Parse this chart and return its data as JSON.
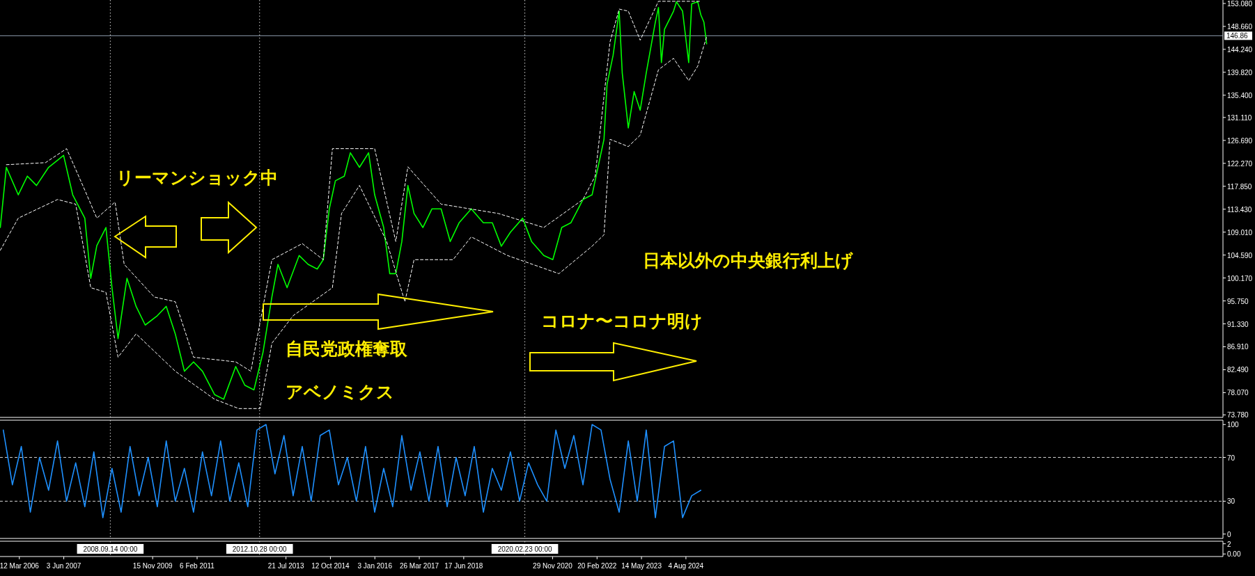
{
  "chart_data": [
    {
      "type": "line",
      "xlim": [
        "2005-08-29",
        "2039-06-01"
      ],
      "ylim": [
        73.3,
        153.75
      ],
      "tick_labels": "y",
      "yticks": [
        {
          "value": 153.08,
          "label": "153.080"
        },
        {
          "value": 148.66,
          "label": "148.660"
        },
        {
          "value": 144.24,
          "label": "144.240"
        },
        {
          "value": 139.82,
          "label": "139.820"
        },
        {
          "value": 135.4,
          "label": "135.400"
        },
        {
          "value": 131.11,
          "label": "131.110"
        },
        {
          "value": 126.69,
          "label": "126.690"
        },
        {
          "value": 122.27,
          "label": "122.270"
        },
        {
          "value": 117.85,
          "label": "117.850"
        },
        {
          "value": 113.43,
          "label": "113.430"
        },
        {
          "value": 109.01,
          "label": "109.010"
        },
        {
          "value": 104.59,
          "label": "104.590"
        },
        {
          "value": 100.17,
          "label": "100.170"
        },
        {
          "value": 95.75,
          "label": "95.750"
        },
        {
          "value": 91.33,
          "label": "91.330"
        },
        {
          "value": 86.91,
          "label": "86.910"
        },
        {
          "value": 82.49,
          "label": "82.490"
        },
        {
          "value": 78.07,
          "label": "78.070"
        },
        {
          "value": 73.78,
          "label": "73.780"
        }
      ],
      "series": [
        {
          "color": "#00ff00",
          "line_style": "solid",
          "x": [
            "2005-09",
            "2005-11",
            "2006-03",
            "2006-06",
            "2006-09",
            "2007-01",
            "2007-06",
            "2007-09",
            "2008-01",
            "2008-03",
            "2008-05",
            "2008-08",
            "2008-10",
            "2008-12",
            "2009-03",
            "2009-06",
            "2009-09",
            "2010-01",
            "2010-04",
            "2010-07",
            "2010-10",
            "2011-01",
            "2011-04",
            "2011-08",
            "2011-11",
            "2012-03",
            "2012-06",
            "2012-09",
            "2012-12",
            "2013-03",
            "2013-05",
            "2013-08",
            "2013-12",
            "2014-03",
            "2014-06",
            "2014-08",
            "2014-10",
            "2014-12",
            "2015-03",
            "2015-05",
            "2015-08",
            "2015-11",
            "2016-01",
            "2016-04",
            "2016-06",
            "2016-08",
            "2016-10",
            "2016-12",
            "2017-02",
            "2017-05",
            "2017-08",
            "2017-11",
            "2018-02",
            "2018-05",
            "2018-09",
            "2019-01",
            "2019-04",
            "2019-07",
            "2019-10",
            "2020-02",
            "2020-05",
            "2020-09",
            "2020-12",
            "2021-03",
            "2021-06",
            "2021-10",
            "2022-01",
            "2022-05",
            "2022-06",
            "2022-08",
            "2022-10",
            "2022-11",
            "2023-01",
            "2023-03",
            "2023-05",
            "2023-07",
            "2023-10",
            "2023-11",
            "2023-12",
            "2024-01",
            "2024-04",
            "2024-05",
            "2024-07",
            "2024-09",
            "2024-10",
            "2024-12",
            "2025-01",
            "2025-02",
            "2025-03"
          ],
          "values": [
            109.9,
            121.5,
            116.2,
            119.8,
            118.0,
            121.5,
            123.8,
            116.2,
            111.7,
            100.1,
            106.4,
            109.9,
            98.3,
            88.5,
            100.1,
            94.7,
            91.1,
            92.9,
            94.7,
            89.4,
            82.2,
            84.0,
            82.2,
            77.7,
            76.8,
            83.1,
            79.5,
            78.6,
            85.8,
            96.5,
            102.8,
            98.3,
            104.5,
            102.8,
            101.9,
            103.7,
            113.5,
            118.9,
            119.8,
            124.3,
            121.5,
            124.3,
            116.2,
            109.9,
            101.0,
            101.0,
            107.2,
            118.0,
            112.6,
            109.9,
            113.5,
            113.5,
            107.2,
            110.8,
            113.5,
            110.8,
            110.8,
            106.3,
            109.0,
            111.7,
            107.2,
            104.5,
            103.7,
            109.9,
            110.8,
            115.3,
            116.2,
            126.9,
            137.5,
            143.1,
            151.6,
            139.7,
            129.1,
            136.1,
            132.5,
            139.7,
            149.5,
            152.3,
            141.7,
            148.1,
            151.6,
            153.4,
            151.6,
            141.7,
            153.0,
            153.4,
            150.9,
            149.5,
            145.3
          ]
        },
        {
          "color": "#ffffff",
          "line_style": "dashed",
          "x": [
            "2005-11",
            "2006-12",
            "2007-07",
            "2008-01",
            "2008-05",
            "2008-11",
            "2009-02",
            "2009-12",
            "2010-07",
            "2011-01",
            "2012-03",
            "2012-08",
            "2013-03",
            "2014-01",
            "2014-08",
            "2014-11",
            "2016-01",
            "2016-08",
            "2016-12",
            "2017-11",
            "2019-06",
            "2020-09",
            "2021-10",
            "2022-02",
            "2022-07",
            "2022-10",
            "2023-01",
            "2023-05",
            "2023-11",
            "2024-05",
            "2025-01"
          ],
          "values": [
            122.0,
            122.4,
            125.1,
            117.1,
            111.7,
            114.8,
            102.8,
            96.5,
            95.6,
            84.9,
            84.0,
            82.2,
            103.7,
            106.8,
            103.7,
            125.1,
            125.1,
            107.2,
            121.6,
            114.4,
            112.6,
            109.9,
            115.3,
            119.8,
            145.7,
            152.0,
            151.6,
            146.0,
            153.5,
            153.5,
            153.5
          ]
        },
        {
          "color": "#ffffff",
          "line_style": "dashed",
          "x": [
            "2005-09",
            "2006-03",
            "2007-04",
            "2007-10",
            "2008-03",
            "2008-08",
            "2008-12",
            "2009-06",
            "2010-07",
            "2011-08",
            "2012-04",
            "2012-11",
            "2013-03",
            "2013-10",
            "2014-11",
            "2015-02",
            "2015-08",
            "2016-05",
            "2016-11",
            "2017-02",
            "2018-03",
            "2018-09",
            "2019-09",
            "2021-02",
            "2022-01",
            "2022-05",
            "2022-07",
            "2023-01",
            "2023-05",
            "2023-11",
            "2024-04",
            "2024-09",
            "2024-12",
            "2025-03"
          ],
          "values": [
            105.5,
            111.7,
            115.3,
            114.4,
            98.3,
            97.4,
            84.9,
            89.4,
            82.2,
            76.8,
            75.0,
            75.0,
            87.6,
            92.9,
            98.3,
            112.6,
            118.0,
            107.2,
            95.6,
            103.7,
            103.7,
            108.1,
            104.5,
            101.0,
            106.3,
            108.5,
            126.9,
            125.5,
            127.7,
            140.3,
            142.5,
            138.2,
            141.0,
            146.7
          ]
        }
      ],
      "ref_lines": [
        {
          "axis": "x",
          "value": "2008-09-14",
          "color": "#d0d0d0",
          "line_style": "dotted"
        },
        {
          "axis": "x",
          "value": "2012-10-28",
          "color": "#d0d0d0",
          "line_style": "dotted"
        },
        {
          "axis": "x",
          "value": "2020-02-23",
          "color": "#d0d0d0",
          "line_style": "dotted"
        },
        {
          "axis": "y",
          "value": 146.86,
          "label": "146.86",
          "color": "#8c9bab",
          "line_style": "solid"
        }
      ],
      "annotations": [
        "リーマンショック中",
        "自民党政権奪取",
        "アベノミクス",
        "コロナ〜コロナ明け",
        "日本以外の中央銀行利上げ"
      ]
    },
    {
      "type": "line",
      "xlim": [
        "2005-08-29",
        "2039-06-01"
      ],
      "ylim": [
        -4,
        104
      ],
      "tick_labels": "y",
      "yticks": [
        0,
        30,
        70,
        100
      ],
      "series": [
        {
          "color": "#1e90ff",
          "line_style": "solid",
          "x": [
            "2005-10",
            "2006-01",
            "2006-04",
            "2006-07",
            "2006-10",
            "2007-01",
            "2007-04",
            "2007-07",
            "2007-10",
            "2008-01",
            "2008-04",
            "2008-07",
            "2008-10",
            "2009-01",
            "2009-04",
            "2009-07",
            "2009-10",
            "2010-01",
            "2010-04",
            "2010-07",
            "2010-10",
            "2011-01",
            "2011-04",
            "2011-07",
            "2011-10",
            "2012-01",
            "2012-04",
            "2012-07",
            "2012-10",
            "2013-01",
            "2013-04",
            "2013-07",
            "2013-10",
            "2014-01",
            "2014-04",
            "2014-07",
            "2014-10",
            "2015-01",
            "2015-04",
            "2015-07",
            "2015-10",
            "2016-01",
            "2016-04",
            "2016-07",
            "2016-10",
            "2017-01",
            "2017-04",
            "2017-07",
            "2017-10",
            "2018-01",
            "2018-04",
            "2018-07",
            "2018-10",
            "2019-01",
            "2019-04",
            "2019-07",
            "2019-10",
            "2020-01",
            "2020-04",
            "2020-07",
            "2020-10",
            "2021-01",
            "2021-04",
            "2021-07",
            "2021-10",
            "2022-01",
            "2022-04",
            "2022-07",
            "2022-10",
            "2023-01",
            "2023-04",
            "2023-07",
            "2023-10",
            "2024-01",
            "2024-04",
            "2024-07",
            "2024-10",
            "2025-01"
          ],
          "values": [
            95,
            45,
            80,
            20,
            70,
            40,
            85,
            30,
            65,
            25,
            75,
            15,
            60,
            20,
            80,
            35,
            70,
            25,
            85,
            30,
            60,
            20,
            75,
            35,
            85,
            30,
            65,
            25,
            95,
            100,
            55,
            90,
            35,
            80,
            30,
            90,
            95,
            45,
            70,
            30,
            80,
            20,
            60,
            25,
            90,
            40,
            75,
            30,
            80,
            25,
            70,
            35,
            80,
            20,
            60,
            40,
            75,
            30,
            65,
            45,
            30,
            95,
            60,
            90,
            45,
            100,
            95,
            50,
            20,
            85,
            30,
            95,
            15,
            80,
            85,
            15,
            35,
            40
          ]
        }
      ],
      "ref_lines": [
        {
          "axis": "y",
          "value": 70,
          "color": "#d0d0d0",
          "line_style": "dashed"
        },
        {
          "axis": "y",
          "value": 30,
          "color": "#d0d0d0",
          "line_style": "dashed"
        },
        {
          "axis": "x",
          "value": "2008-09-14",
          "color": "#d0d0d0",
          "line_style": "dotted"
        },
        {
          "axis": "x",
          "value": "2012-10-28",
          "color": "#d0d0d0",
          "line_style": "dotted"
        },
        {
          "axis": "x",
          "value": "2020-02-23",
          "color": "#d0d0d0",
          "line_style": "dotted"
        }
      ]
    },
    {
      "type": "line",
      "xlim": [
        "2005-08-29",
        "2039-06-01"
      ],
      "ylim": [
        -0.5,
        2.5
      ],
      "yticks": [
        {
          "value": 2,
          "label": "2"
        },
        {
          "value": 0,
          "label": "0.00"
        }
      ],
      "xticks": [
        {
          "value": "2006-03-12",
          "label": "12 Mar 2006"
        },
        {
          "value": "2007-06-03",
          "label": "3 Jun 2007"
        },
        {
          "value": "2009-11-15",
          "label": "15 Nov 2009"
        },
        {
          "value": "2011-02-06",
          "label": "6 Feb 2011"
        },
        {
          "value": "2013-07-21",
          "label": "21 Jul 2013"
        },
        {
          "value": "2014-10-12",
          "label": "12 Oct 2014"
        },
        {
          "value": "2016-01-03",
          "label": "3 Jan 2016"
        },
        {
          "value": "2017-03-26",
          "label": "26 Mar 2017"
        },
        {
          "value": "2018-06-17",
          "label": "17 Jun 2018"
        },
        {
          "value": "2020-11-29",
          "label": "29 Nov 2020"
        },
        {
          "value": "2022-02-20",
          "label": "20 Feb 2022"
        },
        {
          "value": "2023-05-14",
          "label": "14 May 2023"
        },
        {
          "value": "2024-08-04",
          "label": "4 Aug 2024"
        }
      ],
      "ref_lines": [
        {
          "axis": "x",
          "value": "2008-09-14",
          "label": "2008.09.14 00:00",
          "color": "#d0d0d0",
          "line_style": "dotted"
        },
        {
          "axis": "x",
          "value": "2012-10-28",
          "label": "2012.10.28 00:00",
          "color": "#d0d0d0",
          "line_style": "dotted"
        },
        {
          "axis": "x",
          "value": "2020-02-23",
          "label": "2020.02.23 00:00",
          "color": "#d0d0d0",
          "line_style": "dotted"
        }
      ]
    }
  ]
}
